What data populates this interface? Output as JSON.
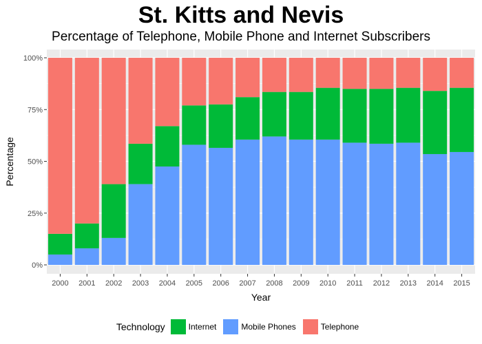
{
  "chart_data": {
    "type": "bar",
    "stacked": true,
    "title": "St. Kitts and Nevis",
    "subtitle": "Percentage of Telephone, Mobile Phone and Internet Subscribers",
    "xlabel": "Year",
    "ylabel": "Percentage",
    "ylim": [
      0,
      1
    ],
    "yticks": [
      "0%",
      "25%",
      "50%",
      "75%",
      "100%"
    ],
    "ytick_values": [
      0,
      0.25,
      0.5,
      0.75,
      1.0
    ],
    "grid": true,
    "legend_title": "Technology",
    "legend_position": "bottom",
    "categories": [
      "2000",
      "2001",
      "2002",
      "2003",
      "2004",
      "2005",
      "2006",
      "2007",
      "2008",
      "2009",
      "2010",
      "2011",
      "2012",
      "2013",
      "2014",
      "2015"
    ],
    "series": [
      {
        "name": "Mobile Phones",
        "color": "#619CFF",
        "values": [
          0.05,
          0.08,
          0.13,
          0.39,
          0.475,
          0.58,
          0.565,
          0.605,
          0.62,
          0.605,
          0.605,
          0.59,
          0.585,
          0.59,
          0.535,
          0.545
        ]
      },
      {
        "name": "Internet",
        "color": "#00BA38",
        "values": [
          0.1,
          0.12,
          0.26,
          0.195,
          0.195,
          0.19,
          0.21,
          0.205,
          0.215,
          0.23,
          0.25,
          0.26,
          0.265,
          0.265,
          0.305,
          0.31
        ]
      },
      {
        "name": "Telephone",
        "color": "#F8766D",
        "values": [
          0.85,
          0.8,
          0.61,
          0.415,
          0.33,
          0.23,
          0.225,
          0.19,
          0.165,
          0.165,
          0.145,
          0.15,
          0.15,
          0.145,
          0.16,
          0.145
        ]
      }
    ],
    "legend_order": [
      "Internet",
      "Mobile Phones",
      "Telephone"
    ],
    "panel_color": "#EBEBEB"
  }
}
